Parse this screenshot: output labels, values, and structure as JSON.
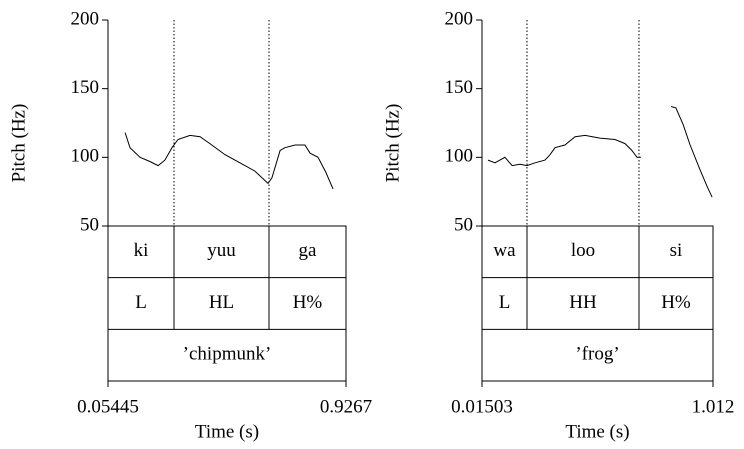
{
  "chart_data": [
    {
      "type": "line",
      "y_label": "Pitch (Hz)",
      "x_label": "Time (s)",
      "xlim": [
        0.05445,
        0.9267
      ],
      "xticks": [
        0.05445,
        0.9267
      ],
      "ylim": [
        50,
        200
      ],
      "yticks": [
        50,
        100,
        150,
        200
      ],
      "color": "#000000",
      "x": [
        0.117,
        0.135,
        0.172,
        0.208,
        0.238,
        0.263,
        0.289,
        0.311,
        0.355,
        0.392,
        0.428,
        0.483,
        0.538,
        0.593,
        0.641,
        0.655,
        0.685,
        0.703,
        0.74,
        0.776,
        0.795,
        0.824,
        0.853,
        0.879
      ],
      "values": [
        118,
        107,
        100,
        97,
        94,
        98,
        107,
        113,
        116,
        115,
        110,
        102,
        96,
        90,
        81,
        85,
        105,
        107,
        109,
        109,
        103,
        100,
        89,
        77
      ],
      "tiers": [
        {
          "labels": [
            "ki",
            "yuu",
            "ga"
          ],
          "boundaries": [
            0.2963,
            0.6445
          ]
        },
        {
          "labels": [
            "L",
            "HL",
            "H%"
          ],
          "boundaries": [
            0.2963,
            0.6445
          ]
        },
        {
          "labels": [
            "’chipmunk’"
          ]
        }
      ]
    },
    {
      "type": "line",
      "y_label": "Pitch (Hz)",
      "x_label": "Time (s)",
      "xlim": [
        0.01503,
        1.012
      ],
      "xticks": [
        0.01503,
        1.012
      ],
      "ylim": [
        50,
        200
      ],
      "yticks": [
        50,
        100,
        150,
        200
      ],
      "color": "#000000",
      "x": [
        0.041,
        0.071,
        0.114,
        0.145,
        0.179,
        0.209,
        0.244,
        0.287,
        0.309,
        0.33,
        0.373,
        0.417,
        0.46,
        0.524,
        0.589,
        0.632,
        0.662,
        0.684,
        0.701,
        null,
        0.831,
        0.852,
        0.883,
        0.913,
        0.956,
        0.986,
        1.008
      ],
      "values": [
        98,
        96,
        100,
        94,
        95,
        94,
        96,
        98,
        102,
        107,
        109,
        115,
        116,
        114,
        113,
        110,
        105,
        100,
        100,
        null,
        137,
        136,
        124,
        109,
        91,
        79,
        71
      ],
      "tiers": [
        {
          "labels": [
            "wa",
            "loo",
            "si"
          ],
          "boundaries": [
            0.2092,
            0.6926
          ]
        },
        {
          "labels": [
            "L",
            "HH",
            "H%"
          ],
          "boundaries": [
            0.2092,
            0.6926
          ]
        },
        {
          "labels": [
            "’frog’"
          ]
        }
      ]
    }
  ]
}
